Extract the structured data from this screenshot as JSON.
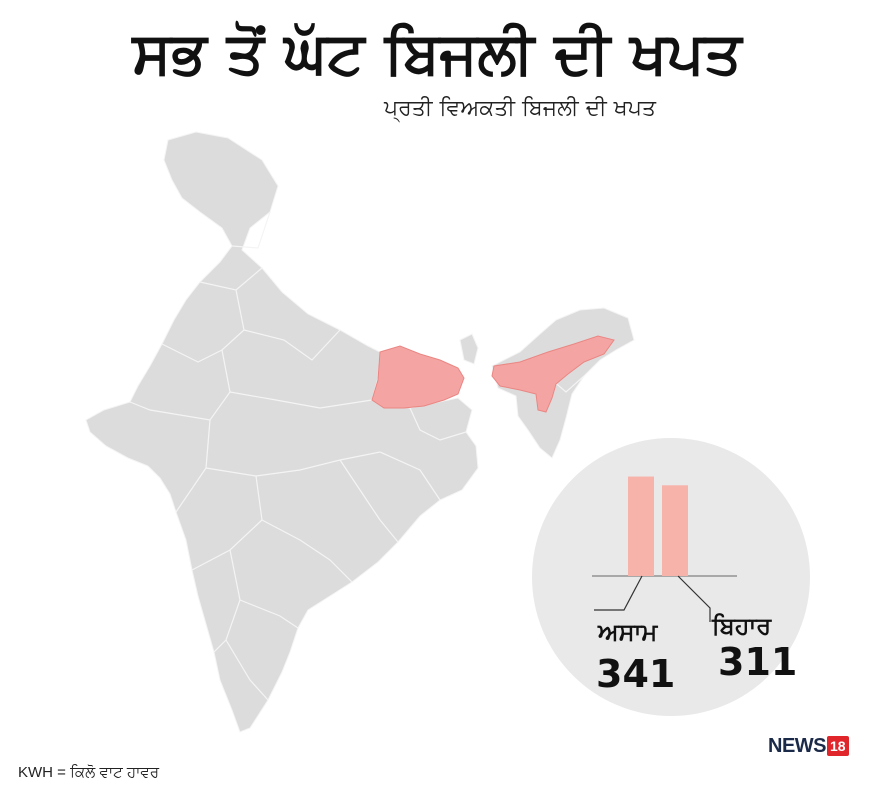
{
  "title": "ਸਭ ਤੋਂ ਘੱਟ ਬਿਜਲੀ ਦੀ ਖਪਤ",
  "subtitle": "ਪ੍ਰਤੀ ਵਿਅਕਤੀ ਬਿਜਲੀ ਦੀ ਖਪਤ",
  "map": {
    "base_color": "#dcdcdc",
    "border_color": "#f4f4f4",
    "highlight_color": "#f4a5a3",
    "highlight_border": "#ea8683",
    "highlighted_regions": [
      "assam",
      "bihar"
    ]
  },
  "chart_data": {
    "type": "bar",
    "categories": [
      "ਅਸਾਮ",
      "ਬਿਹਾਰ"
    ],
    "values": [
      341,
      311
    ],
    "ylim": [
      0,
      360
    ],
    "bar_color": "#f7b3aa",
    "grid": false
  },
  "labels": {
    "assam_name": "ਅਸਾਮ",
    "assam_value": "341",
    "bihar_name": "ਬਿਹਾਰ",
    "bihar_value": "311"
  },
  "footnote": "KWH = ਕਿਲੋ ਵਾਟ ਹਾਵਰ",
  "logo": {
    "text": "NEWS",
    "number": "18"
  }
}
